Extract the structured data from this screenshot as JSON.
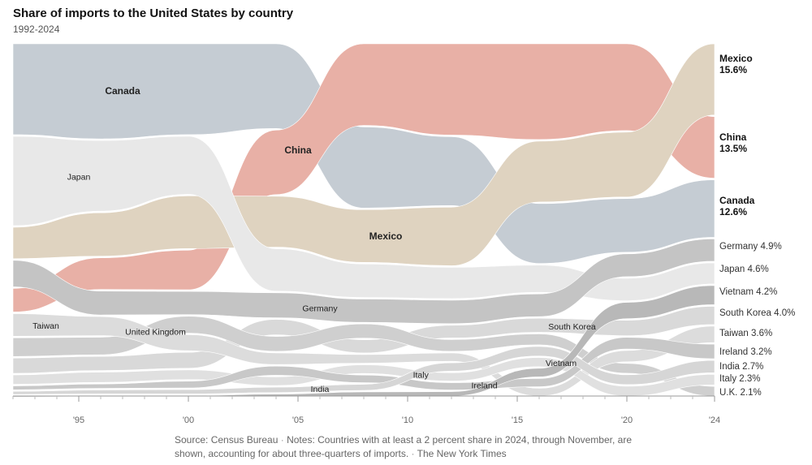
{
  "title": "Share of imports to the United States by country",
  "subtitle": "1992-2024",
  "source": "Source: Census Bureau",
  "notes": "Notes: Countries with at least a 2 percent share in 2024, through November, are shown, accounting for about three-quarters of imports.",
  "credit": "The New York Times",
  "separator": "·",
  "colors": {
    "Canada": "#c5ccd3",
    "China": "#e8b0a6",
    "Mexico": "#dfd3c0",
    "Japan": "#e8e8e8",
    "Germany": "#c4c4c4",
    "Taiwan": "#dcdcdc",
    "United Kingdom": "#cfcfcf",
    "South Korea": "#d9d9d9",
    "Vietnam": "#b8b8b8",
    "Ireland": "#c8c8c8",
    "India": "#d6d6d6",
    "Italy": "#e0e0e0",
    "U.K.": "#d2d2d2"
  },
  "chart_data": {
    "type": "area",
    "subtype": "ranked stream (bump area) chart",
    "x_ticks": [
      "'95",
      "'00",
      "'05",
      "'10",
      "'15",
      "'20",
      "'24"
    ],
    "x_tick_years": [
      1995,
      2000,
      2005,
      2010,
      2015,
      2020,
      2024
    ],
    "xlim": [
      1992,
      2024
    ],
    "years": [
      1992,
      1996,
      2000,
      2004,
      2008,
      2012,
      2016,
      2020,
      2024
    ],
    "series": [
      {
        "name": "Canada",
        "values": [
          18.5,
          19.5,
          18.8,
          17.6,
          16.0,
          14.1,
          13.2,
          11.5,
          12.6
        ]
      },
      {
        "name": "China",
        "values": [
          4.8,
          6.5,
          8.2,
          13.4,
          16.1,
          18.7,
          21.1,
          18.6,
          13.5
        ]
      },
      {
        "name": "Mexico",
        "values": [
          6.4,
          8.9,
          10.9,
          10.6,
          10.4,
          12.0,
          13.4,
          13.9,
          15.6
        ]
      },
      {
        "name": "Japan",
        "values": [
          18.2,
          14.5,
          12.0,
          8.8,
          6.6,
          6.4,
          6.0,
          4.8,
          4.6
        ]
      },
      {
        "name": "Germany",
        "values": [
          5.4,
          4.9,
          4.8,
          5.2,
          4.6,
          4.8,
          5.0,
          4.9,
          4.9
        ]
      },
      {
        "name": "Taiwan",
        "values": [
          4.6,
          3.9,
          3.3,
          2.4,
          1.7,
          1.7,
          1.7,
          2.4,
          3.6
        ]
      },
      {
        "name": "United Kingdom",
        "values": [
          3.8,
          3.6,
          3.5,
          3.1,
          2.8,
          2.4,
          2.4,
          2.1,
          2.1
        ]
      },
      {
        "name": "South Korea",
        "values": [
          3.1,
          2.9,
          3.3,
          3.2,
          2.6,
          2.6,
          3.1,
          3.3,
          4.0
        ]
      },
      {
        "name": "Vietnam",
        "values": [
          0.0,
          0.1,
          0.1,
          0.4,
          0.8,
          0.9,
          1.9,
          3.5,
          4.2
        ]
      },
      {
        "name": "Ireland",
        "values": [
          0.8,
          0.9,
          1.4,
          1.9,
          1.5,
          1.5,
          1.8,
          2.5,
          3.2
        ]
      },
      {
        "name": "India",
        "values": [
          0.6,
          0.8,
          0.9,
          1.1,
          1.2,
          1.7,
          2.1,
          2.1,
          2.7
        ]
      },
      {
        "name": "Italy",
        "values": [
          1.9,
          2.1,
          2.0,
          1.8,
          1.7,
          1.7,
          2.0,
          2.1,
          2.3
        ]
      },
      {
        "name": "U.K.",
        "values": [
          3.8,
          3.6,
          3.5,
          3.1,
          2.8,
          2.4,
          2.4,
          2.1,
          2.1
        ]
      }
    ],
    "end_labels": [
      {
        "name": "Mexico",
        "value": "15.6%",
        "bold": true
      },
      {
        "name": "China",
        "value": "13.5%",
        "bold": true
      },
      {
        "name": "Canada",
        "value": "12.6%",
        "bold": true
      },
      {
        "name": "Germany 4.9%",
        "bold": false
      },
      {
        "name": "Japan 4.6%",
        "bold": false
      },
      {
        "name": "Vietnam 4.2%",
        "bold": false
      },
      {
        "name": "South Korea 4.0%",
        "bold": false
      },
      {
        "name": "Taiwan 3.6%",
        "bold": false
      },
      {
        "name": "Ireland 3.2%",
        "bold": false
      },
      {
        "name": "India 2.7%",
        "bold": false
      },
      {
        "name": "Italy 2.3%",
        "bold": false
      },
      {
        "name": "U.K. 2.1%",
        "bold": false
      }
    ],
    "inline_labels": [
      {
        "text": "Canada",
        "bold": true
      },
      {
        "text": "Japan",
        "bold": false
      },
      {
        "text": "China",
        "bold": true
      },
      {
        "text": "Mexico",
        "bold": true
      },
      {
        "text": "Germany",
        "bold": false
      },
      {
        "text": "Taiwan",
        "bold": false
      },
      {
        "text": "United Kingdom",
        "bold": false
      },
      {
        "text": "South Korea",
        "bold": false
      },
      {
        "text": "India",
        "bold": false
      },
      {
        "text": "Italy",
        "bold": false
      },
      {
        "text": "Ireland",
        "bold": false
      },
      {
        "text": "Vietnam",
        "bold": false
      }
    ]
  }
}
